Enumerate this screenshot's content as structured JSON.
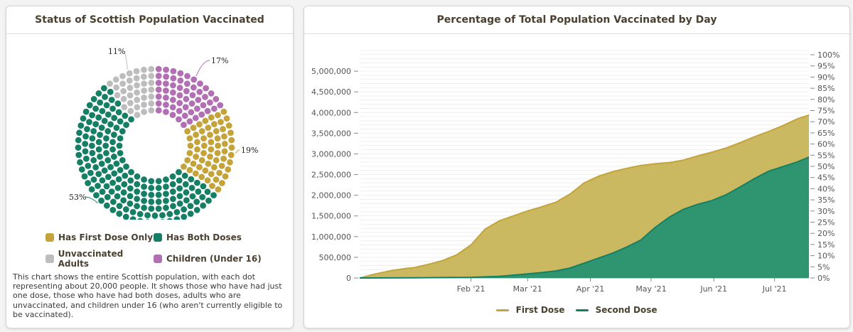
{
  "left_panel": {
    "title": "Status of Scottish Population Vaccinated",
    "legend": [
      {
        "label": "Has First Dose Only",
        "color": "#c4a43a"
      },
      {
        "label": "Has Both Doses",
        "color": "#157f66"
      },
      {
        "label": "Unvaccinated Adults",
        "color": "#bdbdbd"
      },
      {
        "label": "Children (Under 16)",
        "color": "#b26fb4"
      }
    ],
    "description": "This chart shows the entire Scottish population, with each dot representing about 20,000 people. It shows those who have had just one dose, those who have had both doses, adults who are unvaccinated, and children under 16 (who aren't currently eligible to be vaccinated)."
  },
  "right_panel": {
    "title": "Percentage of Total Population Vaccinated by Day",
    "legend": [
      {
        "label": "First Dose",
        "color": "#c4a43a"
      },
      {
        "label": "Second Dose",
        "color": "#157f66"
      }
    ]
  },
  "chart_data": [
    {
      "type": "pie",
      "variant": "dot-donut",
      "title": "Status of Scottish Population Vaccinated",
      "unit_per_dot": "about 20,000 people",
      "slices": [
        {
          "label": "Children (Under 16)",
          "percent": 17,
          "color": "#b26fb4"
        },
        {
          "label": "Has First Dose Only",
          "percent": 19,
          "color": "#c4a43a"
        },
        {
          "label": "Has Both Doses",
          "percent": 53,
          "color": "#157f66"
        },
        {
          "label": "Unvaccinated Adults",
          "percent": 11,
          "color": "#bdbdbd"
        }
      ],
      "data_labels": [
        "17%",
        "19%",
        "53%",
        "11%"
      ]
    },
    {
      "type": "area",
      "title": "Percentage of Total Population Vaccinated by Day",
      "x_tick_labels": [
        "Feb '21",
        "Mar '21",
        "Apr '21",
        "May '21",
        "Jun '21",
        "Jul '21"
      ],
      "x_range": [
        "2020-12-08",
        "2021-07-18"
      ],
      "y_left_range": [
        0,
        5500000
      ],
      "y_left_ticks": [
        "0",
        "500,000",
        "1,000,000",
        "1,500,000",
        "2,000,000",
        "2,500,000",
        "3,000,000",
        "3,500,000",
        "4,000,000",
        "4,500,000",
        "5,000,000"
      ],
      "y_right_ticks": [
        "0%",
        "5%",
        "10%",
        "15%",
        "20%",
        "25%",
        "30%",
        "35%",
        "40%",
        "45%",
        "50%",
        "55%",
        "60%",
        "65%",
        "70%",
        "75%",
        "80%",
        "85%",
        "90%",
        "95%",
        "100%"
      ],
      "y_right_range": [
        0,
        100
      ],
      "grid": true,
      "legend_position": "bottom",
      "series": [
        {
          "name": "First Dose",
          "color": "#c4a43a",
          "fill": "#cbb961",
          "points": [
            [
              "2020-12-08",
              0
            ],
            [
              "2020-12-16",
              100000
            ],
            [
              "2020-12-24",
              180000
            ],
            [
              "2020-12-31",
              230000
            ],
            [
              "2021-01-04",
              250000
            ],
            [
              "2021-01-11",
              330000
            ],
            [
              "2021-01-18",
              420000
            ],
            [
              "2021-01-25",
              560000
            ],
            [
              "2021-02-01",
              800000
            ],
            [
              "2021-02-08",
              1180000
            ],
            [
              "2021-02-15",
              1380000
            ],
            [
              "2021-02-22",
              1500000
            ],
            [
              "2021-03-01",
              1620000
            ],
            [
              "2021-03-08",
              1720000
            ],
            [
              "2021-03-15",
              1830000
            ],
            [
              "2021-03-22",
              2030000
            ],
            [
              "2021-03-29",
              2300000
            ],
            [
              "2021-04-05",
              2460000
            ],
            [
              "2021-04-12",
              2570000
            ],
            [
              "2021-04-19",
              2650000
            ],
            [
              "2021-04-26",
              2720000
            ],
            [
              "2021-05-03",
              2760000
            ],
            [
              "2021-05-10",
              2790000
            ],
            [
              "2021-05-17",
              2850000
            ],
            [
              "2021-05-24",
              2950000
            ],
            [
              "2021-05-31",
              3040000
            ],
            [
              "2021-06-07",
              3140000
            ],
            [
              "2021-06-14",
              3270000
            ],
            [
              "2021-06-21",
              3410000
            ],
            [
              "2021-06-28",
              3540000
            ],
            [
              "2021-07-05",
              3680000
            ],
            [
              "2021-07-12",
              3840000
            ],
            [
              "2021-07-18",
              3940000
            ]
          ]
        },
        {
          "name": "Second Dose",
          "color": "#157f66",
          "fill": "#2e9570",
          "points": [
            [
              "2020-12-08",
              0
            ],
            [
              "2021-01-04",
              5000
            ],
            [
              "2021-02-01",
              15000
            ],
            [
              "2021-02-15",
              40000
            ],
            [
              "2021-03-01",
              100000
            ],
            [
              "2021-03-08",
              130000
            ],
            [
              "2021-03-15",
              170000
            ],
            [
              "2021-03-22",
              240000
            ],
            [
              "2021-03-29",
              360000
            ],
            [
              "2021-04-05",
              480000
            ],
            [
              "2021-04-12",
              600000
            ],
            [
              "2021-04-19",
              750000
            ],
            [
              "2021-04-26",
              920000
            ],
            [
              "2021-05-03",
              1220000
            ],
            [
              "2021-05-10",
              1470000
            ],
            [
              "2021-05-17",
              1660000
            ],
            [
              "2021-05-24",
              1780000
            ],
            [
              "2021-05-31",
              1870000
            ],
            [
              "2021-06-07",
              2010000
            ],
            [
              "2021-06-14",
              2200000
            ],
            [
              "2021-06-21",
              2400000
            ],
            [
              "2021-06-28",
              2580000
            ],
            [
              "2021-07-05",
              2690000
            ],
            [
              "2021-07-12",
              2800000
            ],
            [
              "2021-07-18",
              2920000
            ]
          ]
        }
      ]
    }
  ]
}
